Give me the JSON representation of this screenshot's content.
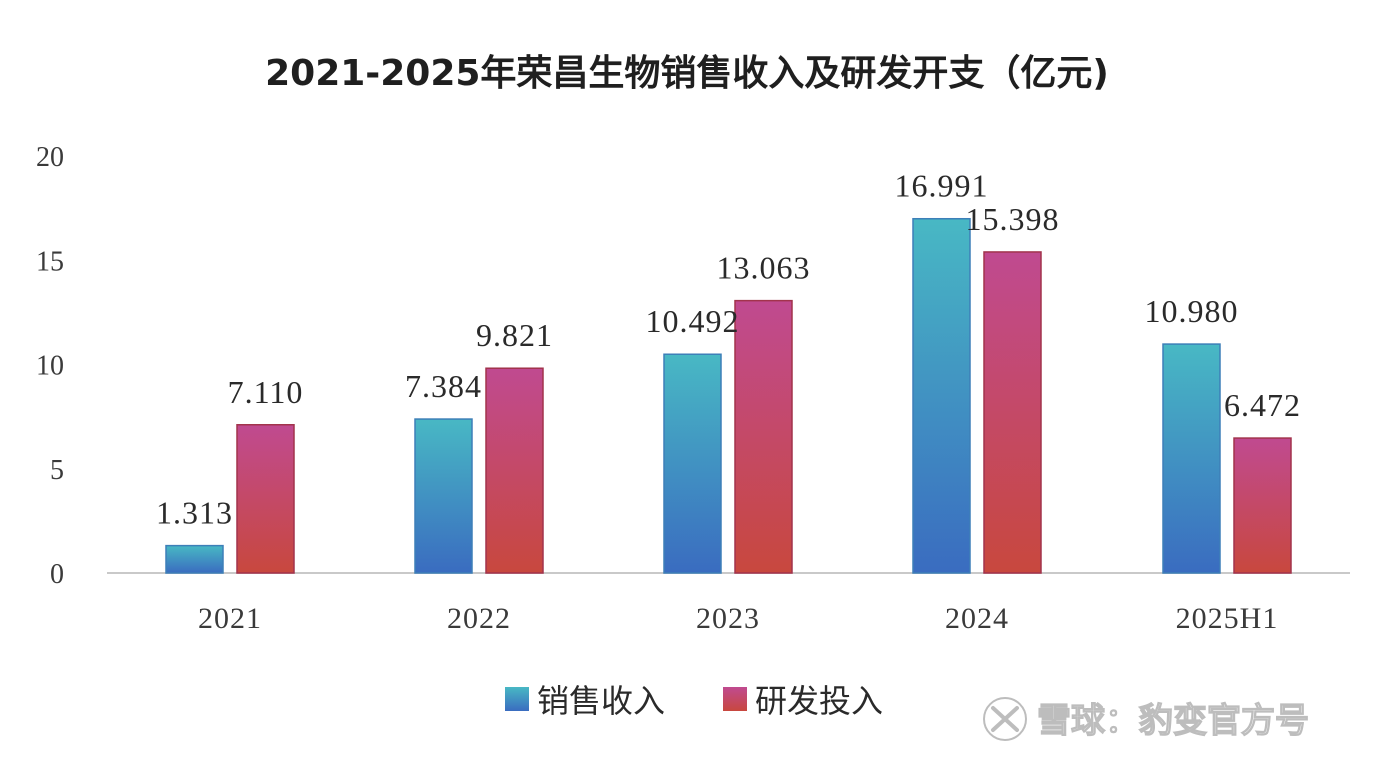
{
  "chart_data": {
    "type": "bar",
    "title": "2021-2025年荣昌生物销售收入及研发开支（亿元)",
    "categories": [
      "2021",
      "2022",
      "2023",
      "2024",
      "2025H1"
    ],
    "series": [
      {
        "name": "销售收入",
        "values": [
          1.313,
          7.384,
          10.492,
          16.991,
          10.98
        ],
        "labels": [
          "1.313",
          "7.384",
          "10.492",
          "16.991",
          "10.980"
        ]
      },
      {
        "name": "研发投入",
        "values": [
          7.11,
          9.821,
          13.063,
          15.398,
          6.472
        ],
        "labels": [
          "7.110",
          "9.821",
          "13.063",
          "15.398",
          "6.472"
        ]
      }
    ],
    "ylim": [
      0,
      20
    ],
    "yticks": [
      "0",
      "5",
      "10",
      "15",
      "20"
    ],
    "grid": false,
    "legend": "bottom-center",
    "colors": {
      "sales_top": "#48b8c4",
      "sales_bottom": "#3a6cc0",
      "rd_top": "#c04a90",
      "rd_bottom": "#c8483e",
      "axis": "#c9c9c9"
    }
  },
  "watermark": {
    "text": "雪球：豹变官方号"
  }
}
